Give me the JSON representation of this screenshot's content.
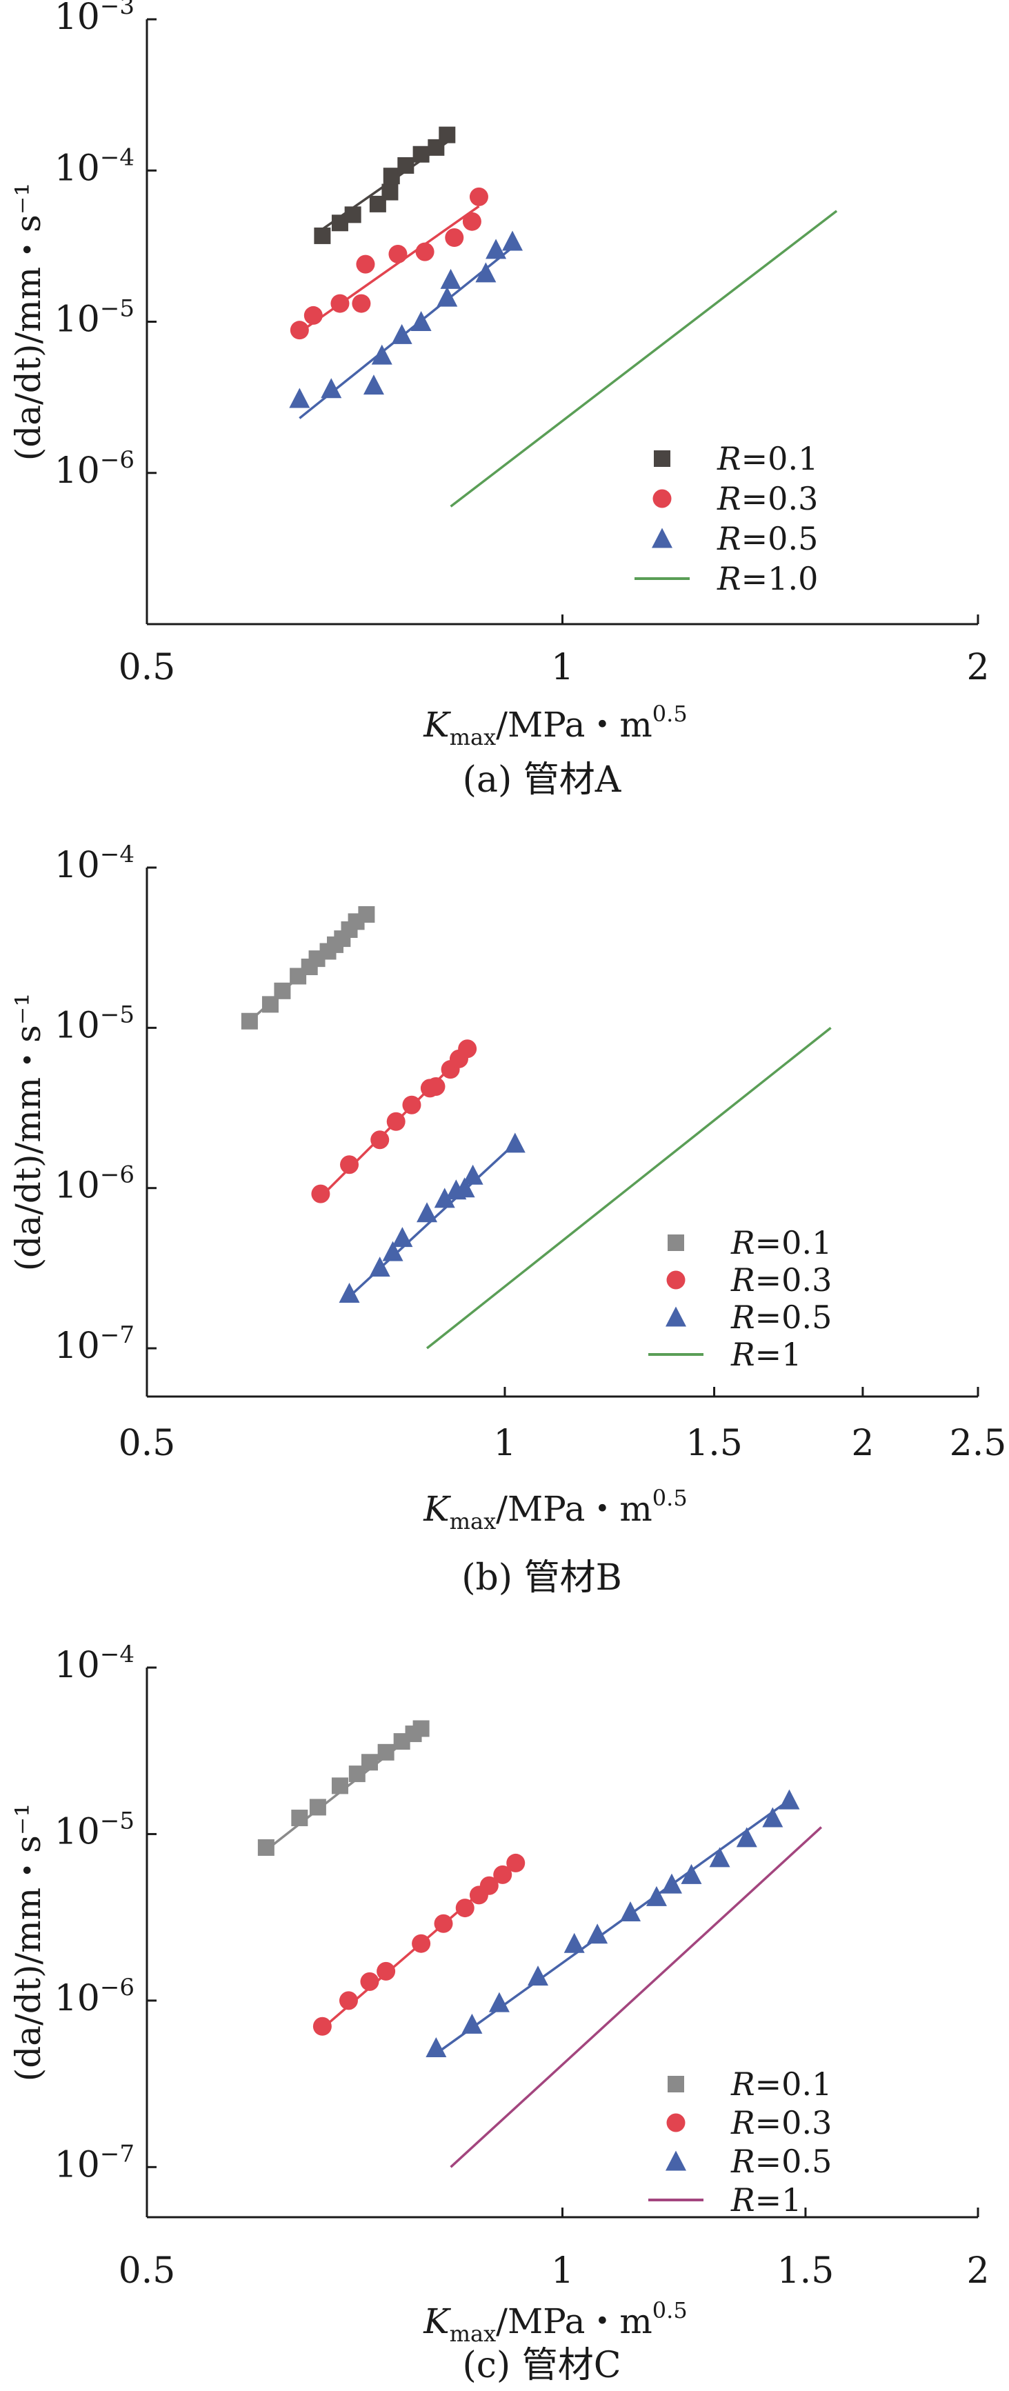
{
  "chart_data": [
    {
      "type": "scatter",
      "title": "",
      "caption": "(a) 管材A",
      "xlabel_main": "K",
      "xlabel_sub": "max",
      "xlabel_rest": "/MPa・m",
      "xlabel_sup": "0.5",
      "ylabel": "(da/dt)/mm・s⁻¹",
      "xscale": "log",
      "yscale": "log",
      "xlim": [
        0.5,
        2
      ],
      "ylim": [
        1e-07,
        0.001
      ],
      "xticks": [
        {
          "value": 0.5,
          "label": "0.5"
        },
        {
          "value": 1,
          "label": "1"
        },
        {
          "value": 2,
          "label": "2"
        }
      ],
      "yticks": [
        {
          "value": 0.001,
          "base": "10",
          "exp": "−3"
        },
        {
          "value": 0.0001,
          "base": "10",
          "exp": "−4"
        },
        {
          "value": 1e-05,
          "base": "10",
          "exp": "−5"
        },
        {
          "value": 1e-06,
          "base": "10",
          "exp": "−6"
        }
      ],
      "legend_position": "bottom-right",
      "series": [
        {
          "name": "R=0.1",
          "name_italic": "R",
          "name_rest": "=0.1",
          "marker": "square",
          "color": "#4a4542",
          "points": [
            [
              0.67,
              3.7e-05
            ],
            [
              0.69,
              4.5e-05
            ],
            [
              0.705,
              5.1e-05
            ],
            [
              0.735,
              6e-05
            ],
            [
              0.75,
              7.2e-05
            ],
            [
              0.752,
              9.2e-05
            ],
            [
              0.77,
              0.000108
            ],
            [
              0.79,
              0.000128
            ],
            [
              0.81,
              0.000142
            ],
            [
              0.825,
              0.000172
            ]
          ],
          "fit": [
            [
              0.665,
              3.9e-05
            ],
            [
              0.83,
              0.00016
            ]
          ]
        },
        {
          "name": "R=0.3",
          "name_italic": "R",
          "name_rest": "=0.3",
          "marker": "circle",
          "color": "#e2444f",
          "points": [
            [
              0.645,
              8.8e-06
            ],
            [
              0.66,
              1.1e-05
            ],
            [
              0.69,
              1.32e-05
            ],
            [
              0.715,
              1.32e-05
            ],
            [
              0.72,
              2.4e-05
            ],
            [
              0.76,
              2.8e-05
            ],
            [
              0.795,
              2.9e-05
            ],
            [
              0.835,
              3.6e-05
            ],
            [
              0.86,
              4.6e-05
            ],
            [
              0.87,
              6.7e-05
            ]
          ],
          "fit": [
            [
              0.645,
              8.5e-06
            ],
            [
              0.87,
              5.8e-05
            ]
          ]
        },
        {
          "name": "R=0.5",
          "name_italic": "R",
          "name_rest": "=0.5",
          "marker": "triangle",
          "color": "#4763a9",
          "points": [
            [
              0.645,
              3.1e-06
            ],
            [
              0.68,
              3.6e-06
            ],
            [
              0.73,
              3.8e-06
            ],
            [
              0.74,
              6e-06
            ],
            [
              0.765,
              8.2e-06
            ],
            [
              0.79,
              1e-05
            ],
            [
              0.825,
              1.45e-05
            ],
            [
              0.83,
              1.9e-05
            ],
            [
              0.88,
              2.1e-05
            ],
            [
              0.895,
              3e-05
            ],
            [
              0.92,
              3.4e-05
            ]
          ],
          "fit": [
            [
              0.645,
              2.3e-06
            ],
            [
              0.92,
              3.1e-05
            ]
          ]
        },
        {
          "name": "R=1.0",
          "name_italic": "R",
          "name_rest": "=1.0",
          "marker": "line",
          "color": "#5a9e56",
          "points": [],
          "fit": [
            [
              0.83,
              6e-07
            ],
            [
              1.58,
              5.4e-05
            ]
          ]
        }
      ]
    },
    {
      "type": "scatter",
      "title": "",
      "caption": "(b) 管材B",
      "xlabel_main": "K",
      "xlabel_sub": "max",
      "xlabel_rest": "/MPa・m",
      "xlabel_sup": "0.5",
      "ylabel": "(da/dt)/mm・s⁻¹",
      "xscale": "log",
      "yscale": "log",
      "xlim": [
        0.5,
        2.5
      ],
      "ylim": [
        5e-08,
        0.0001
      ],
      "xticks": [
        {
          "value": 0.5,
          "label": "0.5"
        },
        {
          "value": 1,
          "label": "1"
        },
        {
          "value": 1.5,
          "label": "1.5"
        },
        {
          "value": 2,
          "label": "2"
        },
        {
          "value": 2.5,
          "label": "2.5"
        }
      ],
      "yticks": [
        {
          "value": 0.0001,
          "base": "10",
          "exp": "−4"
        },
        {
          "value": 1e-05,
          "base": "10",
          "exp": "−5"
        },
        {
          "value": 1e-06,
          "base": "10",
          "exp": "−6"
        },
        {
          "value": 1e-07,
          "base": "10",
          "exp": "−7"
        }
      ],
      "legend_position": "bottom-right",
      "series": [
        {
          "name": "R=0.1",
          "name_italic": "R",
          "name_rest": "=0.1",
          "marker": "square",
          "color": "#8a8a8a",
          "points": [
            [
              0.61,
              1.1e-05
            ],
            [
              0.635,
              1.4e-05
            ],
            [
              0.65,
              1.7e-05
            ],
            [
              0.67,
              2.1e-05
            ],
            [
              0.685,
              2.4e-05
            ],
            [
              0.695,
              2.7e-05
            ],
            [
              0.71,
              3e-05
            ],
            [
              0.72,
              3.3e-05
            ],
            [
              0.73,
              3.6e-05
            ],
            [
              0.74,
              4.1e-05
            ],
            [
              0.75,
              4.6e-05
            ],
            [
              0.765,
              5.1e-05
            ]
          ],
          "fit": [
            [
              0.61,
              1.1e-05
            ],
            [
              0.765,
              5e-05
            ]
          ]
        },
        {
          "name": "R=0.3",
          "name_italic": "R",
          "name_rest": "=0.3",
          "marker": "circle",
          "color": "#e2444f",
          "points": [
            [
              0.7,
              9.2e-07
            ],
            [
              0.74,
              1.4e-06
            ],
            [
              0.785,
              2e-06
            ],
            [
              0.81,
              2.6e-06
            ],
            [
              0.835,
              3.3e-06
            ],
            [
              0.865,
              4.2e-06
            ],
            [
              0.875,
              4.3e-06
            ],
            [
              0.9,
              5.5e-06
            ],
            [
              0.915,
              6.4e-06
            ],
            [
              0.93,
              7.4e-06
            ]
          ],
          "fit": [
            [
              0.7,
              8.8e-07
            ],
            [
              0.93,
              7.2e-06
            ]
          ]
        },
        {
          "name": "R=0.5",
          "name_italic": "R",
          "name_rest": "=0.5",
          "marker": "triangle",
          "color": "#4763a9",
          "points": [
            [
              0.74,
              2.2e-07
            ],
            [
              0.785,
              3.2e-07
            ],
            [
              0.805,
              4e-07
            ],
            [
              0.82,
              4.9e-07
            ],
            [
              0.86,
              7e-07
            ],
            [
              0.89,
              8.6e-07
            ],
            [
              0.91,
              9.7e-07
            ],
            [
              0.925,
              1e-06
            ],
            [
              0.94,
              1.2e-06
            ],
            [
              1.02,
              1.9e-06
            ]
          ],
          "fit": [
            [
              0.74,
              2.1e-07
            ],
            [
              1.02,
              1.9e-06
            ]
          ]
        },
        {
          "name": "R=1",
          "name_italic": "R",
          "name_rest": "=1",
          "marker": "line",
          "color": "#5a9e56",
          "points": [],
          "fit": [
            [
              0.86,
              1e-07
            ],
            [
              1.88,
              1e-05
            ]
          ]
        }
      ]
    },
    {
      "type": "scatter",
      "title": "",
      "caption": "(c) 管材C",
      "xlabel_main": "K",
      "xlabel_sub": "max",
      "xlabel_rest": "/MPa・m",
      "xlabel_sup": "0.5",
      "ylabel": "(da/dt)/mm・s⁻¹",
      "xscale": "log",
      "yscale": "log",
      "xlim": [
        0.5,
        2
      ],
      "ylim": [
        5e-08,
        0.0001
      ],
      "xticks": [
        {
          "value": 0.5,
          "label": "0.5"
        },
        {
          "value": 1,
          "label": "1"
        },
        {
          "value": 1.5,
          "label": "1.5"
        },
        {
          "value": 2,
          "label": "2"
        }
      ],
      "yticks": [
        {
          "value": 0.0001,
          "base": "10",
          "exp": "−4"
        },
        {
          "value": 1e-05,
          "base": "10",
          "exp": "−5"
        },
        {
          "value": 1e-06,
          "base": "10",
          "exp": "−6"
        },
        {
          "value": 1e-07,
          "base": "10",
          "exp": "−7"
        }
      ],
      "legend_position": "bottom-right",
      "series": [
        {
          "name": "R=0.1",
          "name_italic": "R",
          "name_rest": "=0.1",
          "marker": "square",
          "color": "#8a8a8a",
          "points": [
            [
              0.61,
              8.3e-06
            ],
            [
              0.645,
              1.25e-05
            ],
            [
              0.665,
              1.45e-05
            ],
            [
              0.69,
              1.95e-05
            ],
            [
              0.71,
              2.3e-05
            ],
            [
              0.725,
              2.7e-05
            ],
            [
              0.745,
              3.1e-05
            ],
            [
              0.765,
              3.6e-05
            ],
            [
              0.78,
              4e-05
            ],
            [
              0.79,
              4.3e-05
            ]
          ],
          "fit": [
            [
              0.61,
              8e-06
            ],
            [
              0.79,
              4.3e-05
            ]
          ]
        },
        {
          "name": "R=0.3",
          "name_italic": "R",
          "name_rest": "=0.3",
          "marker": "circle",
          "color": "#e2444f",
          "points": [
            [
              0.67,
              7e-07
            ],
            [
              0.7,
              1e-06
            ],
            [
              0.725,
              1.3e-06
            ],
            [
              0.745,
              1.5e-06
            ],
            [
              0.79,
              2.2e-06
            ],
            [
              0.82,
              2.9e-06
            ],
            [
              0.85,
              3.6e-06
            ],
            [
              0.87,
              4.3e-06
            ],
            [
              0.885,
              4.9e-06
            ],
            [
              0.905,
              5.7e-06
            ],
            [
              0.925,
              6.7e-06
            ]
          ],
          "fit": [
            [
              0.67,
              6.8e-07
            ],
            [
              0.925,
              6.8e-06
            ]
          ]
        },
        {
          "name": "R=0.5",
          "name_italic": "R",
          "name_rest": "=0.5",
          "marker": "triangle",
          "color": "#4763a9",
          "points": [
            [
              0.81,
              5.2e-07
            ],
            [
              0.86,
              7.2e-07
            ],
            [
              0.9,
              9.7e-07
            ],
            [
              0.96,
              1.4e-06
            ],
            [
              1.02,
              2.2e-06
            ],
            [
              1.06,
              2.5e-06
            ],
            [
              1.12,
              3.4e-06
            ],
            [
              1.17,
              4.2e-06
            ],
            [
              1.2,
              5e-06
            ],
            [
              1.24,
              5.7e-06
            ],
            [
              1.3,
              7.2e-06
            ],
            [
              1.36,
              9.5e-06
            ],
            [
              1.42,
              1.25e-05
            ],
            [
              1.46,
              1.6e-05
            ]
          ],
          "fit": [
            [
              0.81,
              4.8e-07
            ],
            [
              1.46,
              1.6e-05
            ]
          ]
        },
        {
          "name": "R=1",
          "name_italic": "R",
          "name_rest": "=1",
          "marker": "line",
          "color": "#a3457e",
          "points": [],
          "fit": [
            [
              0.83,
              1e-07
            ],
            [
              1.54,
              1.1e-05
            ]
          ]
        }
      ]
    }
  ]
}
